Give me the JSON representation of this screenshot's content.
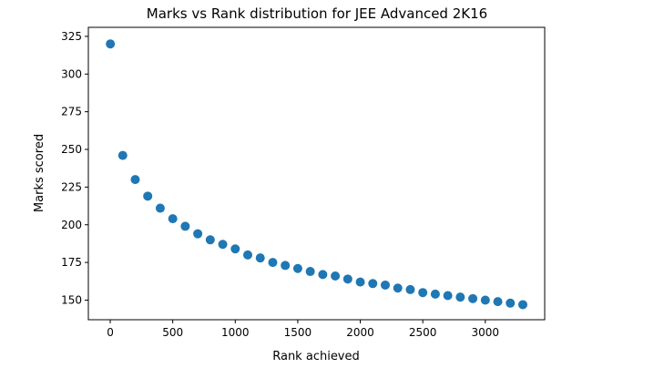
{
  "chart_data": {
    "type": "scatter",
    "title": "Marks vs Rank distribution for JEE Advanced 2K16",
    "xlabel": "Rank achieved",
    "ylabel": "Marks scored",
    "xlim": [
      -175,
      3475
    ],
    "ylim": [
      137,
      331
    ],
    "xticks": [
      0,
      500,
      1000,
      1500,
      2000,
      2500,
      3000
    ],
    "yticks": [
      150,
      175,
      200,
      225,
      250,
      275,
      300,
      325
    ],
    "grid": false,
    "marker_color": "#1f77b4",
    "points": [
      {
        "x": 1,
        "y": 320
      },
      {
        "x": 100,
        "y": 246
      },
      {
        "x": 200,
        "y": 230
      },
      {
        "x": 300,
        "y": 219
      },
      {
        "x": 400,
        "y": 211
      },
      {
        "x": 500,
        "y": 204
      },
      {
        "x": 600,
        "y": 199
      },
      {
        "x": 700,
        "y": 194
      },
      {
        "x": 800,
        "y": 190
      },
      {
        "x": 900,
        "y": 187
      },
      {
        "x": 1000,
        "y": 184
      },
      {
        "x": 1100,
        "y": 180
      },
      {
        "x": 1200,
        "y": 178
      },
      {
        "x": 1300,
        "y": 175
      },
      {
        "x": 1400,
        "y": 173
      },
      {
        "x": 1500,
        "y": 171
      },
      {
        "x": 1600,
        "y": 169
      },
      {
        "x": 1700,
        "y": 167
      },
      {
        "x": 1800,
        "y": 166
      },
      {
        "x": 1900,
        "y": 164
      },
      {
        "x": 2000,
        "y": 162
      },
      {
        "x": 2100,
        "y": 161
      },
      {
        "x": 2200,
        "y": 160
      },
      {
        "x": 2300,
        "y": 158
      },
      {
        "x": 2400,
        "y": 157
      },
      {
        "x": 2500,
        "y": 155
      },
      {
        "x": 2600,
        "y": 154
      },
      {
        "x": 2700,
        "y": 153
      },
      {
        "x": 2800,
        "y": 152
      },
      {
        "x": 2900,
        "y": 151
      },
      {
        "x": 3000,
        "y": 150
      },
      {
        "x": 3100,
        "y": 149
      },
      {
        "x": 3200,
        "y": 148
      },
      {
        "x": 3300,
        "y": 147
      }
    ]
  }
}
